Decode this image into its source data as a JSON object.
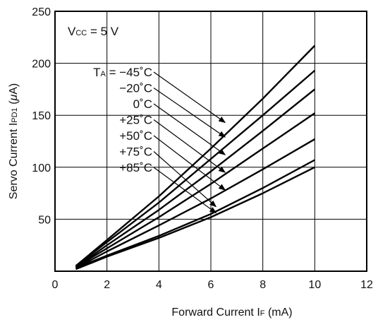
{
  "chart_data": {
    "type": "line",
    "title": "",
    "xlabel": {
      "prefix": "Forward Current  I",
      "sub": "F",
      "suffix": " (mA)"
    },
    "ylabel": {
      "prefix": "Servo Current  I",
      "sub": "PD1",
      "suffix_open": " (",
      "mu": "μ",
      "suffix_close": "A)"
    },
    "xlim": [
      0,
      12
    ],
    "ylim": [
      0,
      250
    ],
    "x_ticks": [
      "0",
      "2",
      "4",
      "6",
      "8",
      "10",
      "12"
    ],
    "y_ticks": [
      "50",
      "100",
      "150",
      "200",
      "250"
    ],
    "grid": true,
    "condition": {
      "prefix": "V",
      "sub": "CC",
      "suffix": " = 5 V"
    },
    "series_prefix": {
      "main": "T",
      "sub": "A",
      "suffix": " = "
    },
    "series": [
      {
        "name": "−45˚C",
        "x": [
          0.8,
          2,
          4,
          6,
          8,
          10
        ],
        "values": [
          5,
          30,
          72,
          118,
          166,
          217
        ]
      },
      {
        "name": "−20˚C",
        "x": [
          0.8,
          2,
          4,
          6,
          8,
          10
        ],
        "values": [
          5,
          28,
          66,
          108,
          150,
          193
        ]
      },
      {
        "name": "0˚C",
        "x": [
          0.8,
          2,
          4,
          6,
          8,
          10
        ],
        "values": [
          4,
          25,
          59,
          96,
          135,
          175
        ]
      },
      {
        "name": "+25˚C",
        "x": [
          0.8,
          2,
          4,
          6,
          8,
          10
        ],
        "values": [
          4,
          22,
          52,
          84,
          118,
          152
        ]
      },
      {
        "name": "+50˚C",
        "x": [
          0.8,
          2,
          4,
          6,
          8,
          10
        ],
        "values": [
          3,
          19,
          44,
          70,
          98,
          127
        ]
      },
      {
        "name": "+75˚C",
        "x": [
          0.8,
          2,
          4,
          6,
          8,
          10
        ],
        "values": [
          3,
          15,
          34,
          55,
          80,
          107
        ]
      },
      {
        "name": "+85˚C",
        "x": [
          0.8,
          2,
          4,
          6,
          8,
          10
        ],
        "values": [
          2,
          14,
          32,
          52,
          75,
          100
        ]
      }
    ],
    "label_arrows": [
      {
        "to": [
          6.55,
          143
        ]
      },
      {
        "to": [
          6.55,
          129
        ]
      },
      {
        "to": [
          6.55,
          112
        ]
      },
      {
        "to": [
          6.55,
          95
        ]
      },
      {
        "to": [
          6.55,
          78
        ]
      },
      {
        "to": [
          6.2,
          62
        ]
      },
      {
        "to": [
          6.2,
          56
        ]
      }
    ]
  }
}
